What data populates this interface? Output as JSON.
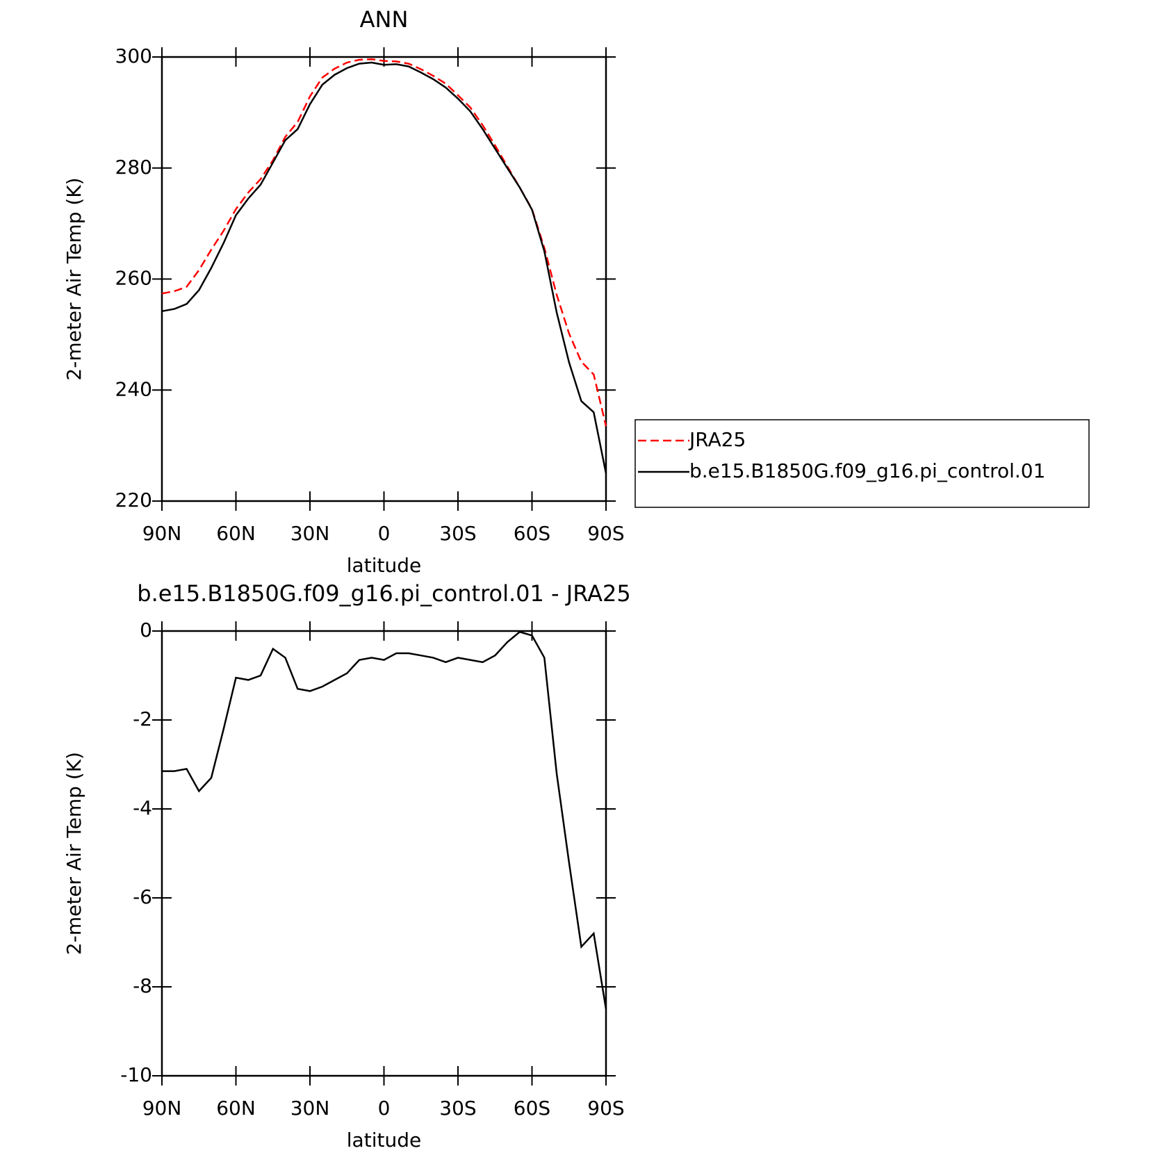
{
  "chart_data": [
    {
      "type": "line",
      "title": "ANN",
      "xlabel": "latitude",
      "ylabel": "2-meter Air Temp (K)",
      "x": [
        90,
        85,
        80,
        75,
        70,
        65,
        60,
        55,
        50,
        45,
        40,
        35,
        30,
        25,
        20,
        15,
        10,
        5,
        0,
        -5,
        -10,
        -15,
        -20,
        -25,
        -30,
        -35,
        -40,
        -45,
        -50,
        -55,
        -60,
        -65,
        -70,
        -75,
        -80,
        -85,
        -90
      ],
      "series": [
        {
          "name": "JRA25",
          "color": "#ff0000",
          "dash": "dashed",
          "values": [
            257.4,
            257.8,
            258.6,
            261.6,
            265.3,
            268.7,
            272.6,
            275.6,
            278,
            281.4,
            285.6,
            288.3,
            292.9,
            296.3,
            297.9,
            299,
            299.5,
            299.6,
            299.3,
            299.2,
            298.8,
            297.8,
            296.6,
            295.2,
            293.1,
            290.9,
            287.7,
            284.1,
            280.3,
            276.5,
            272.6,
            265.6,
            257.2,
            250.2,
            245.1,
            242.8,
            233.5
          ]
        },
        {
          "name": "b.e15.B1850G.f09_g16.pi_control.01",
          "color": "#000000",
          "dash": "solid",
          "values": [
            254.2,
            254.6,
            255.5,
            258,
            262,
            266.5,
            271.5,
            274.5,
            277,
            281,
            285,
            287,
            291.5,
            295,
            296.8,
            298,
            298.8,
            299,
            298.6,
            298.7,
            298.3,
            297.2,
            296,
            294.5,
            292.5,
            290.2,
            287,
            283.5,
            280,
            276.5,
            272.5,
            265,
            254,
            245,
            238,
            236,
            225
          ]
        }
      ],
      "xlim": [
        90,
        -90
      ],
      "xticks": [
        {
          "value": 90,
          "label": "90N"
        },
        {
          "value": 60,
          "label": "60N"
        },
        {
          "value": 30,
          "label": "30N"
        },
        0,
        {
          "value": -30,
          "label": "30S"
        },
        {
          "value": -60,
          "label": "60S"
        },
        {
          "value": -90,
          "label": "90S"
        }
      ],
      "ylim": [
        220,
        300
      ],
      "yticks": [
        220,
        240,
        260,
        280,
        300
      ],
      "legend": "right"
    },
    {
      "type": "line",
      "title": "b.e15.B1850G.f09_g16.pi_control.01 - JRA25",
      "xlabel": "latitude",
      "ylabel": "2-meter Air Temp (K)",
      "x": [
        90,
        85,
        80,
        75,
        70,
        65,
        60,
        55,
        50,
        45,
        40,
        35,
        30,
        25,
        20,
        15,
        10,
        5,
        0,
        -5,
        -10,
        -15,
        -20,
        -25,
        -30,
        -35,
        -40,
        -45,
        -50,
        -55,
        -60,
        -65,
        -70,
        -75,
        -80,
        -85,
        -90
      ],
      "series": [
        {
          "color": "#000000",
          "dash": "solid",
          "values": [
            -3.15,
            -3.15,
            -3.1,
            -3.6,
            -3.3,
            -2.2,
            -1.05,
            -1.1,
            -1,
            -0.4,
            -0.6,
            -1.3,
            -1.35,
            -1.25,
            -1.1,
            -0.95,
            -0.65,
            -0.6,
            -0.65,
            -0.5,
            -0.5,
            -0.55,
            -0.6,
            -0.7,
            -0.6,
            -0.65,
            -0.7,
            -0.55,
            -0.25,
            -0.02,
            -0.1,
            -0.6,
            -3.2,
            -5.2,
            -7.1,
            -6.8,
            -8.5
          ]
        }
      ],
      "xlim": [
        90,
        -90
      ],
      "xticks": [
        {
          "value": 90,
          "label": "90N"
        },
        {
          "value": 60,
          "label": "60N"
        },
        {
          "value": 30,
          "label": "30N"
        },
        0,
        {
          "value": -30,
          "label": "30S"
        },
        {
          "value": -60,
          "label": "60S"
        },
        {
          "value": -90,
          "label": "90S"
        }
      ],
      "ylim": [
        -10,
        0
      ],
      "yticks": [
        -10,
        -8,
        -6,
        -4,
        -2,
        0
      ]
    }
  ]
}
